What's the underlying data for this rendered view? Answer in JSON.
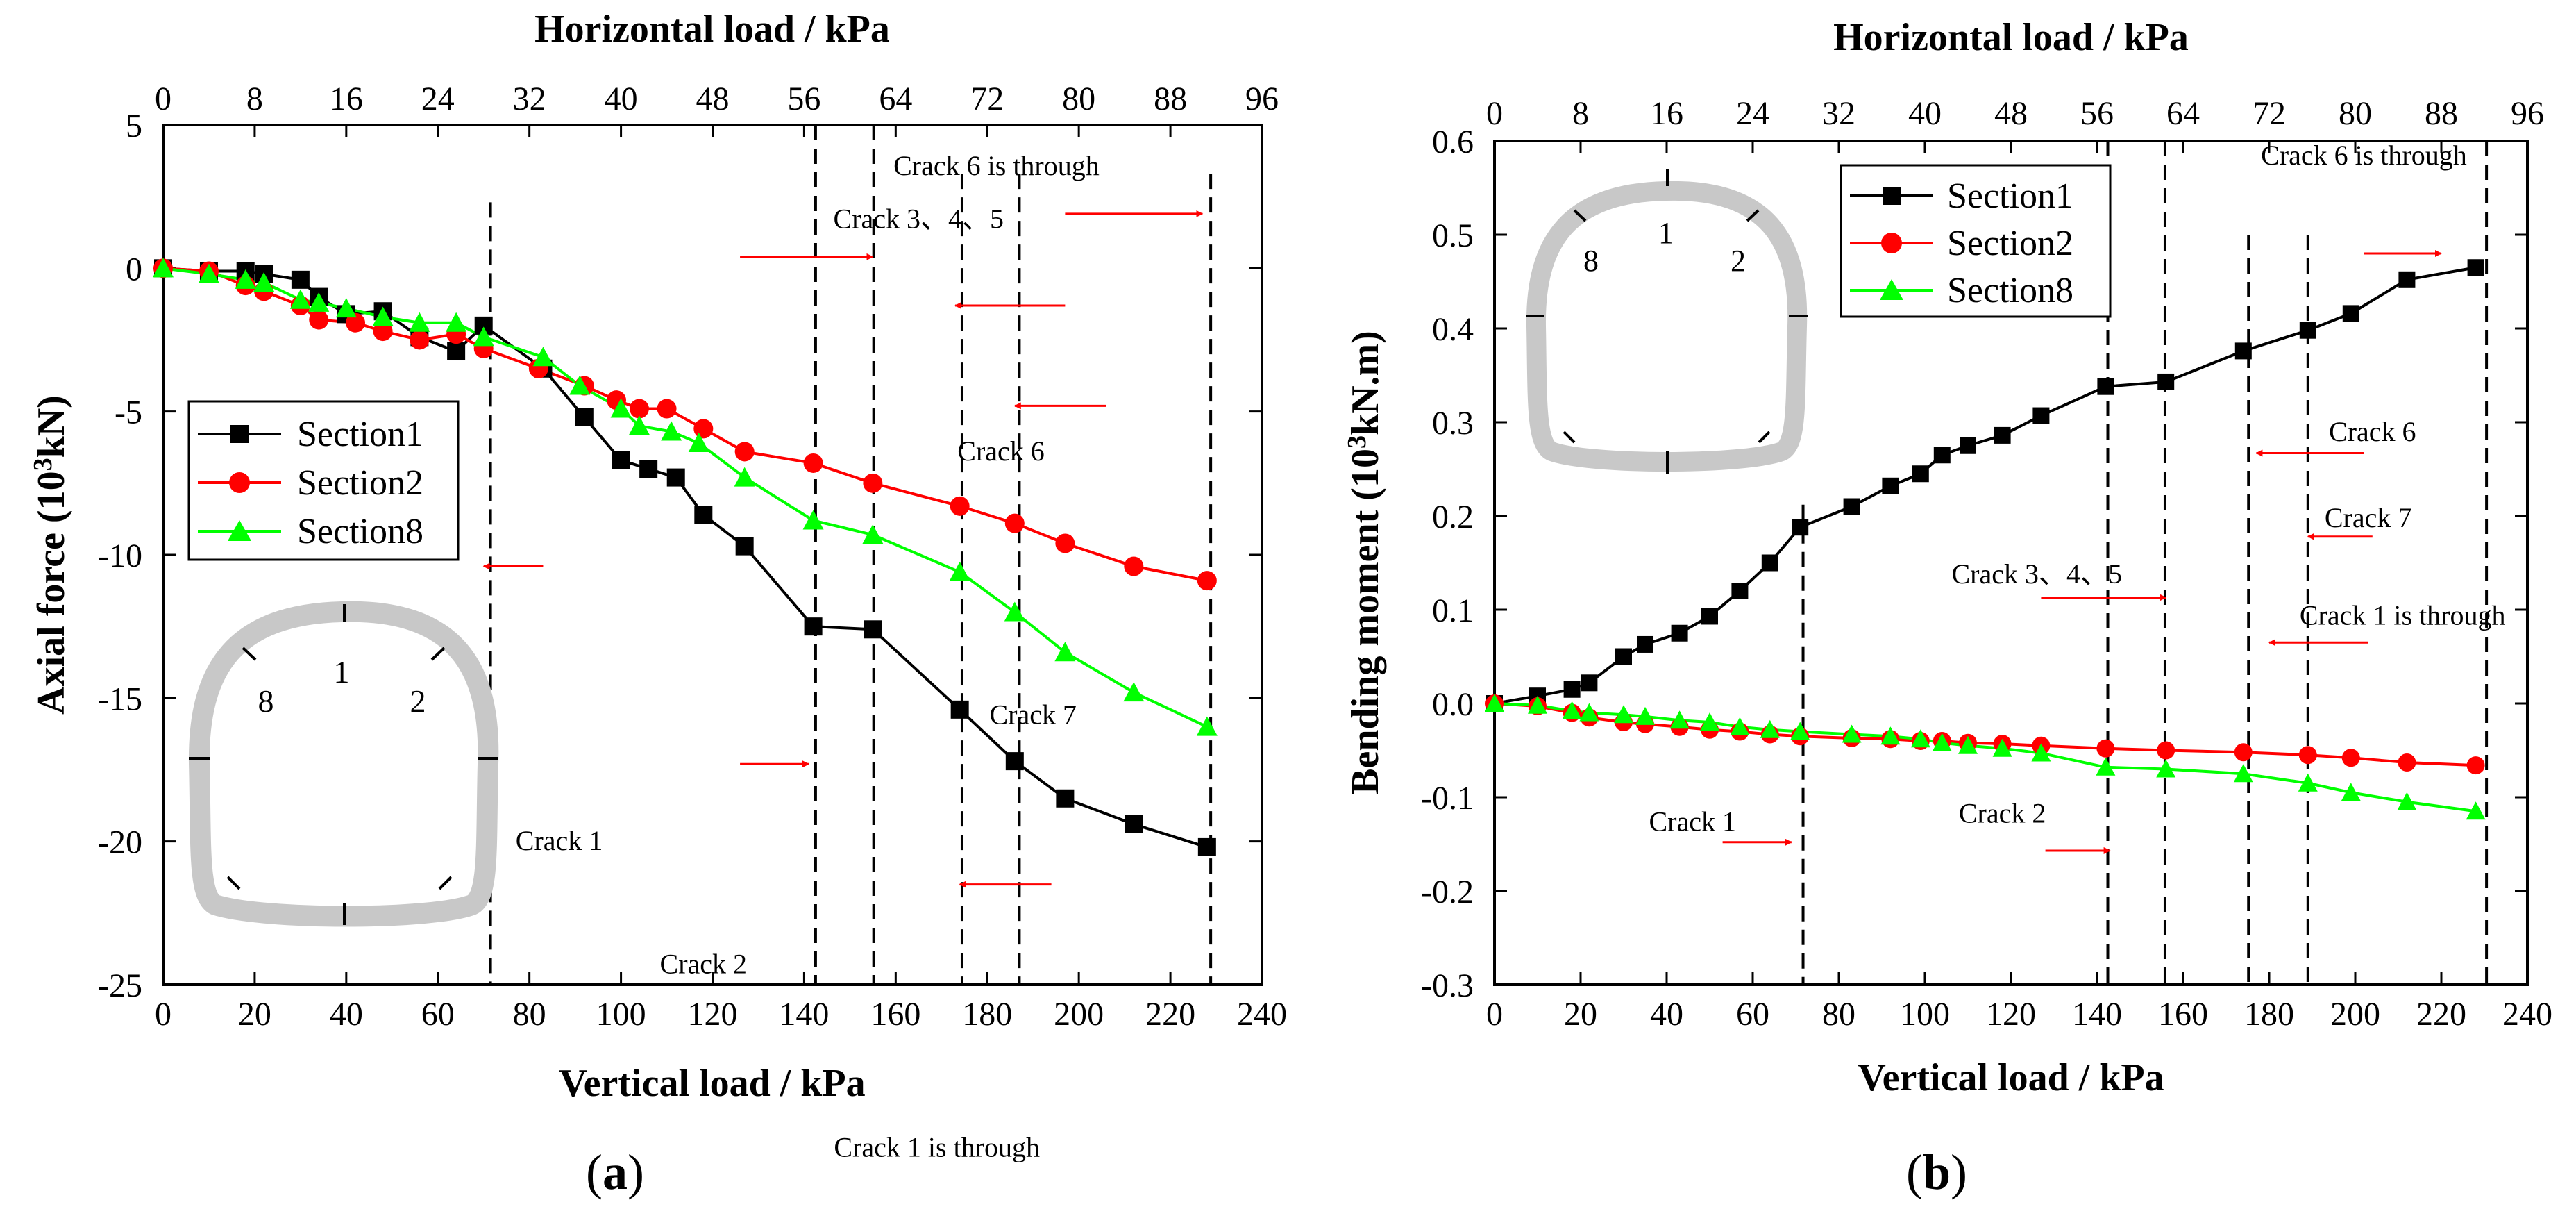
{
  "figure": {
    "panel_a_label": "(a)",
    "panel_b_label": "(b)"
  },
  "section_numbers": {
    "s1": "1",
    "s2": "2",
    "s8": "8"
  },
  "colors": {
    "section1": "#000000",
    "section2": "#ff0000",
    "section8": "#00ff00",
    "inset": "#c8c8c8",
    "arrow": "#ff0000"
  },
  "chart_data": [
    {
      "type": "line",
      "id": "a",
      "title": "",
      "xlabel": "Vertical load / kPa",
      "x2label": "Horizontal load / kPa",
      "ylabel": "Axial force (10³kN)",
      "ylabel_parts": {
        "pre": "Axial force (10",
        "sup": "3",
        "post": "kN)"
      },
      "xlim": [
        0,
        240
      ],
      "ylim": [
        -25,
        5
      ],
      "xticks": [
        "0",
        "20",
        "40",
        "60",
        "80",
        "100",
        "120",
        "140",
        "160",
        "180",
        "200",
        "220",
        "240"
      ],
      "x2ticks": [
        "0",
        "8",
        "16",
        "24",
        "32",
        "40",
        "48",
        "56",
        "64",
        "72",
        "80",
        "88",
        "96"
      ],
      "yticks": [
        "5",
        "0",
        "-5",
        "-10",
        "-15",
        "-20",
        "-25"
      ],
      "legend_position": "middle-left",
      "series": [
        {
          "name": "Section1",
          "marker": "square",
          "color": "#000000",
          "x": [
            0,
            10,
            18,
            22,
            30,
            34,
            40,
            48,
            56,
            64,
            70,
            83,
            92,
            100,
            106,
            112,
            118,
            127,
            142,
            155,
            174,
            186,
            197,
            212,
            228
          ],
          "y": [
            0,
            -0.1,
            -0.1,
            -0.2,
            -0.4,
            -1.0,
            -1.6,
            -1.5,
            -2.4,
            -2.9,
            -2.0,
            -3.5,
            -5.2,
            -6.7,
            -7.0,
            -7.3,
            -8.6,
            -9.7,
            -12.5,
            -12.6,
            -15.4,
            -17.2,
            -18.5,
            -19.4,
            -20.2
          ]
        },
        {
          "name": "Section2",
          "marker": "circle",
          "color": "#ff0000",
          "x": [
            0,
            10,
            18,
            22,
            30,
            34,
            42,
            48,
            56,
            64,
            70,
            82,
            92,
            99,
            104,
            110,
            118,
            127,
            142,
            155,
            174,
            186,
            197,
            212,
            228
          ],
          "y": [
            0,
            -0.1,
            -0.6,
            -0.8,
            -1.3,
            -1.8,
            -1.9,
            -2.2,
            -2.5,
            -2.3,
            -2.8,
            -3.5,
            -4.1,
            -4.6,
            -4.9,
            -4.9,
            -5.6,
            -6.4,
            -6.8,
            -7.5,
            -8.3,
            -8.9,
            -9.6,
            -10.4,
            -10.9
          ]
        },
        {
          "name": "Section8",
          "marker": "triangle",
          "color": "#00ff00",
          "x": [
            0,
            10,
            18,
            22,
            30,
            34,
            40,
            48,
            56,
            64,
            70,
            83,
            91,
            100,
            104,
            111,
            117,
            127,
            142,
            155,
            174,
            186,
            197,
            212,
            228
          ],
          "y": [
            0,
            -0.2,
            -0.4,
            -0.5,
            -1.1,
            -1.2,
            -1.4,
            -1.7,
            -1.9,
            -1.9,
            -2.4,
            -3.1,
            -4.1,
            -4.9,
            -5.5,
            -5.7,
            -6.1,
            -7.3,
            -8.8,
            -9.3,
            -10.6,
            -12.0,
            -13.4,
            -14.8,
            -16.0
          ]
        }
      ],
      "vlines": [
        {
          "x": 71.5,
          "y0": -25,
          "y1": 2.3
        },
        {
          "x": 142.5,
          "y0": -25,
          "y1": 5
        },
        {
          "x": 155.2,
          "y0": -25,
          "y1": 5
        },
        {
          "x": 174.5,
          "y0": -25,
          "y1": 3.3
        },
        {
          "x": 187,
          "y0": -25,
          "y1": 3.3
        },
        {
          "x": 228.8,
          "y0": -25,
          "y1": 3.3
        }
      ],
      "annotations": [
        {
          "text": "Crack 3、4、5",
          "x": 165,
          "y": 1.4,
          "arrow": {
            "x0": 126,
            "y0": 0.4,
            "x1": 155,
            "y1": 0.4
          }
        },
        {
          "text": "Crack 6 is through",
          "x": 182,
          "y": 3.25,
          "arrow": {
            "x0": 197,
            "y0": 1.9,
            "x1": 227,
            "y1": 1.9
          }
        },
        {
          "text": "Crack 6",
          "x": 183,
          "y": -6.7,
          "arrow": {
            "x0": 197,
            "y0": -1.3,
            "x1": 173,
            "y1": -1.3
          }
        },
        {
          "text": "Crack 7",
          "x": 190,
          "y": -15.9,
          "arrow": {
            "x0": 206,
            "y0": -4.8,
            "x1": 186,
            "y1": -4.8
          }
        },
        {
          "text": "Crack 1",
          "x": 86.5,
          "y": -20.3,
          "arrow": {
            "x0": 83,
            "y0": -10.4,
            "x1": 70,
            "y1": -10.4
          }
        },
        {
          "text": "Crack 2",
          "x": 118,
          "y": -24.6,
          "arrow": {
            "x0": 126,
            "y0": -17.3,
            "x1": 141,
            "y1": -17.3
          }
        },
        {
          "text": "Crack 1 is  through",
          "x": 169,
          "y": -31.0,
          "arrow": {
            "x0": 194,
            "y0": -21.5,
            "x1": 174,
            "y1": -21.5
          }
        }
      ]
    },
    {
      "type": "line",
      "id": "b",
      "title": "",
      "xlabel": "Vertical load / kPa",
      "x2label": "Horizontal load / kPa",
      "ylabel": "Bending moment (10³kN.m)",
      "ylabel_parts": {
        "pre": "Bending moment (10",
        "sup": "3",
        "post": "kN.m)"
      },
      "xlim": [
        0,
        240
      ],
      "ylim": [
        -0.3,
        0.6
      ],
      "xticks": [
        "0",
        "20",
        "40",
        "60",
        "80",
        "100",
        "120",
        "140",
        "160",
        "180",
        "200",
        "220",
        "240"
      ],
      "x2ticks": [
        "0",
        "8",
        "16",
        "24",
        "32",
        "40",
        "48",
        "56",
        "64",
        "72",
        "80",
        "88",
        "96"
      ],
      "yticks": [
        "0.6",
        "0.5",
        "0.4",
        "0.3",
        "0.2",
        "0.1",
        "0.0",
        "-0.1",
        "-0.2",
        "-0.3"
      ],
      "legend_position": "top-center",
      "series": [
        {
          "name": "Section1",
          "marker": "square",
          "color": "#000000",
          "x": [
            0,
            10,
            18,
            22,
            30,
            35,
            43,
            50,
            57,
            64,
            71,
            83,
            92,
            99,
            104,
            110,
            118,
            127,
            142,
            156,
            174,
            189,
            199,
            212,
            228
          ],
          "y": [
            0,
            0.008,
            0.015,
            0.022,
            0.05,
            0.063,
            0.075,
            0.093,
            0.12,
            0.15,
            0.188,
            0.21,
            0.232,
            0.245,
            0.265,
            0.275,
            0.286,
            0.307,
            0.338,
            0.343,
            0.376,
            0.398,
            0.416,
            0.452,
            0.465
          ]
        },
        {
          "name": "Section2",
          "marker": "circle",
          "color": "#ff0000",
          "x": [
            0,
            10,
            18,
            22,
            30,
            35,
            43,
            50,
            57,
            64,
            71,
            83,
            92,
            99,
            104,
            110,
            118,
            127,
            142,
            156,
            174,
            189,
            199,
            212,
            228
          ],
          "y": [
            0,
            -0.003,
            -0.01,
            -0.015,
            -0.02,
            -0.022,
            -0.025,
            -0.028,
            -0.03,
            -0.033,
            -0.035,
            -0.037,
            -0.038,
            -0.04,
            -0.04,
            -0.042,
            -0.043,
            -0.045,
            -0.048,
            -0.05,
            -0.052,
            -0.055,
            -0.058,
            -0.063,
            -0.066
          ]
        },
        {
          "name": "Section8",
          "marker": "triangle",
          "color": "#00ff00",
          "x": [
            0,
            10,
            18,
            22,
            30,
            35,
            43,
            50,
            57,
            64,
            71,
            83,
            92,
            99,
            104,
            110,
            118,
            127,
            142,
            156,
            174,
            189,
            199,
            212,
            228
          ],
          "y": [
            0,
            -0.002,
            -0.008,
            -0.01,
            -0.012,
            -0.014,
            -0.018,
            -0.02,
            -0.025,
            -0.028,
            -0.03,
            -0.033,
            -0.035,
            -0.038,
            -0.042,
            -0.045,
            -0.048,
            -0.053,
            -0.068,
            -0.07,
            -0.075,
            -0.085,
            -0.095,
            -0.105,
            -0.115
          ]
        }
      ],
      "vlines": [
        {
          "x": 71.7,
          "y0": -0.3,
          "y1": 0.212
        },
        {
          "x": 142.5,
          "y0": -0.3,
          "y1": 0.6
        },
        {
          "x": 155.8,
          "y0": -0.3,
          "y1": 0.6
        },
        {
          "x": 175.2,
          "y0": -0.3,
          "y1": 0.5
        },
        {
          "x": 189,
          "y0": -0.3,
          "y1": 0.5
        },
        {
          "x": 230.5,
          "y0": -0.3,
          "y1": 0.6
        }
      ],
      "annotations": [
        {
          "text": "Crack 6 is through",
          "x": 202,
          "y": 0.575,
          "arrow": {
            "x0": 202,
            "y0": 0.48,
            "x1": 220,
            "y1": 0.48
          }
        },
        {
          "text": "Crack 6",
          "x": 204,
          "y": 0.28,
          "arrow": {
            "x0": 202,
            "y0": 0.267,
            "x1": 177,
            "y1": 0.267
          }
        },
        {
          "text": "Crack 7",
          "x": 203,
          "y": 0.188,
          "arrow": {
            "x0": 204,
            "y0": 0.178,
            "x1": 189,
            "y1": 0.178
          }
        },
        {
          "text": "Crack 3、4、5",
          "x": 126,
          "y": 0.128,
          "arrow": {
            "x0": 127,
            "y0": 0.113,
            "x1": 156,
            "y1": 0.113
          }
        },
        {
          "text": "Crack 1 is through",
          "x": 211,
          "y": 0.084,
          "arrow": {
            "x0": 203,
            "y0": 0.065,
            "x1": 180,
            "y1": 0.065
          }
        },
        {
          "text": "Crack 1",
          "x": 46,
          "y": -0.136,
          "arrow": {
            "x0": 53,
            "y0": -0.148,
            "x1": 69,
            "y1": -0.148
          }
        },
        {
          "text": "Crack 2",
          "x": 118,
          "y": -0.127,
          "arrow": {
            "x0": 128,
            "y0": -0.157,
            "x1": 143,
            "y1": -0.157
          }
        }
      ]
    }
  ]
}
